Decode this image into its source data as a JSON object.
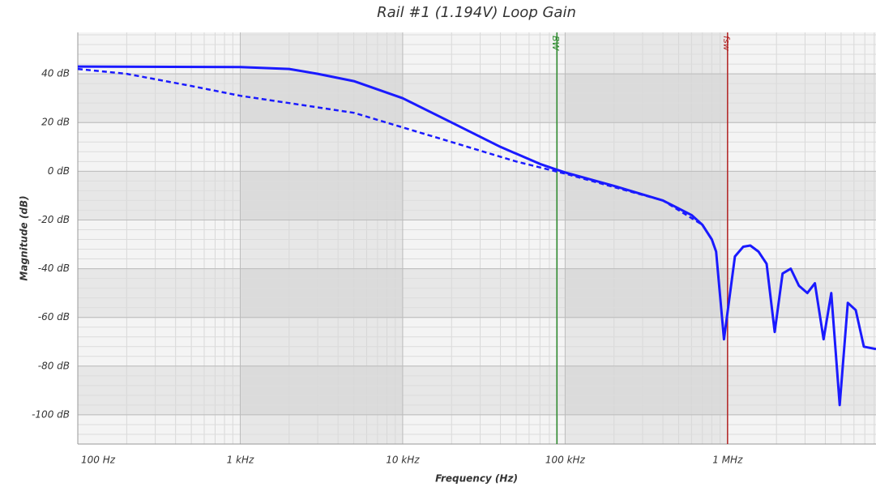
{
  "chart_data": {
    "type": "line",
    "title": "Rail #1 (1.194V) Loop Gain",
    "xlabel": "Frequency (Hz)",
    "ylabel": "Magnitude (dB)",
    "xscale": "log",
    "xlim": [
      100,
      8200000
    ],
    "ylim": [
      -112,
      57
    ],
    "grid": true,
    "xticks": [
      {
        "value": 100,
        "label": "100 Hz"
      },
      {
        "value": 1000,
        "label": "1 kHz"
      },
      {
        "value": 10000,
        "label": "10 kHz"
      },
      {
        "value": 100000,
        "label": "100 kHz"
      },
      {
        "value": 1000000,
        "label": "1 MHz"
      }
    ],
    "yticks": [
      {
        "value": 40,
        "label": "40 dB"
      },
      {
        "value": 20,
        "label": "20 dB"
      },
      {
        "value": 0,
        "label": "0 dB"
      },
      {
        "value": -20,
        "label": "-20 dB"
      },
      {
        "value": -40,
        "label": "-40 dB"
      },
      {
        "value": -60,
        "label": "-60 dB"
      },
      {
        "value": -80,
        "label": "-80 dB"
      },
      {
        "value": -100,
        "label": "-100 dB"
      }
    ],
    "series": [
      {
        "color": "#1a1aff",
        "style": "solid",
        "x": [
          100,
          1000,
          2000,
          3000,
          5000,
          10000,
          20000,
          40000,
          70000,
          90000,
          100000,
          200000,
          400000,
          600000,
          700000,
          800000,
          850000,
          950000,
          1110000,
          1250000,
          1380000,
          1550000,
          1740000,
          1950000,
          2180000,
          2450000,
          2750000,
          3100000,
          3450000,
          3900000,
          4350000,
          4900000,
          5500000,
          6150000,
          6900000,
          8200000
        ],
        "values": [
          43,
          42.8,
          42,
          40,
          37,
          30,
          20,
          10,
          3,
          0.5,
          -0.5,
          -6,
          -12,
          -18,
          -22,
          -28,
          -33,
          -69,
          -35,
          -31,
          -30.5,
          -33,
          -38,
          -66,
          -42,
          -40,
          -47,
          -50,
          -46,
          -69,
          -50,
          -96,
          -54,
          -57,
          -72,
          -73
        ]
      },
      {
        "color": "#1a1aff",
        "style": "dashed",
        "x": [
          100,
          200,
          500,
          1000,
          2000,
          5000,
          10000,
          20000,
          50000,
          100000,
          200000,
          400000,
          700000
        ],
        "values": [
          42,
          40,
          35,
          31,
          28,
          24,
          18,
          12,
          4,
          -1,
          -6.5,
          -12,
          -22
        ]
      }
    ],
    "markers": [
      {
        "label": "BW",
        "x": 89000,
        "color": "#2e8b2e"
      },
      {
        "label": "fsw",
        "x": 1000000,
        "color": "#b22222"
      }
    ]
  }
}
